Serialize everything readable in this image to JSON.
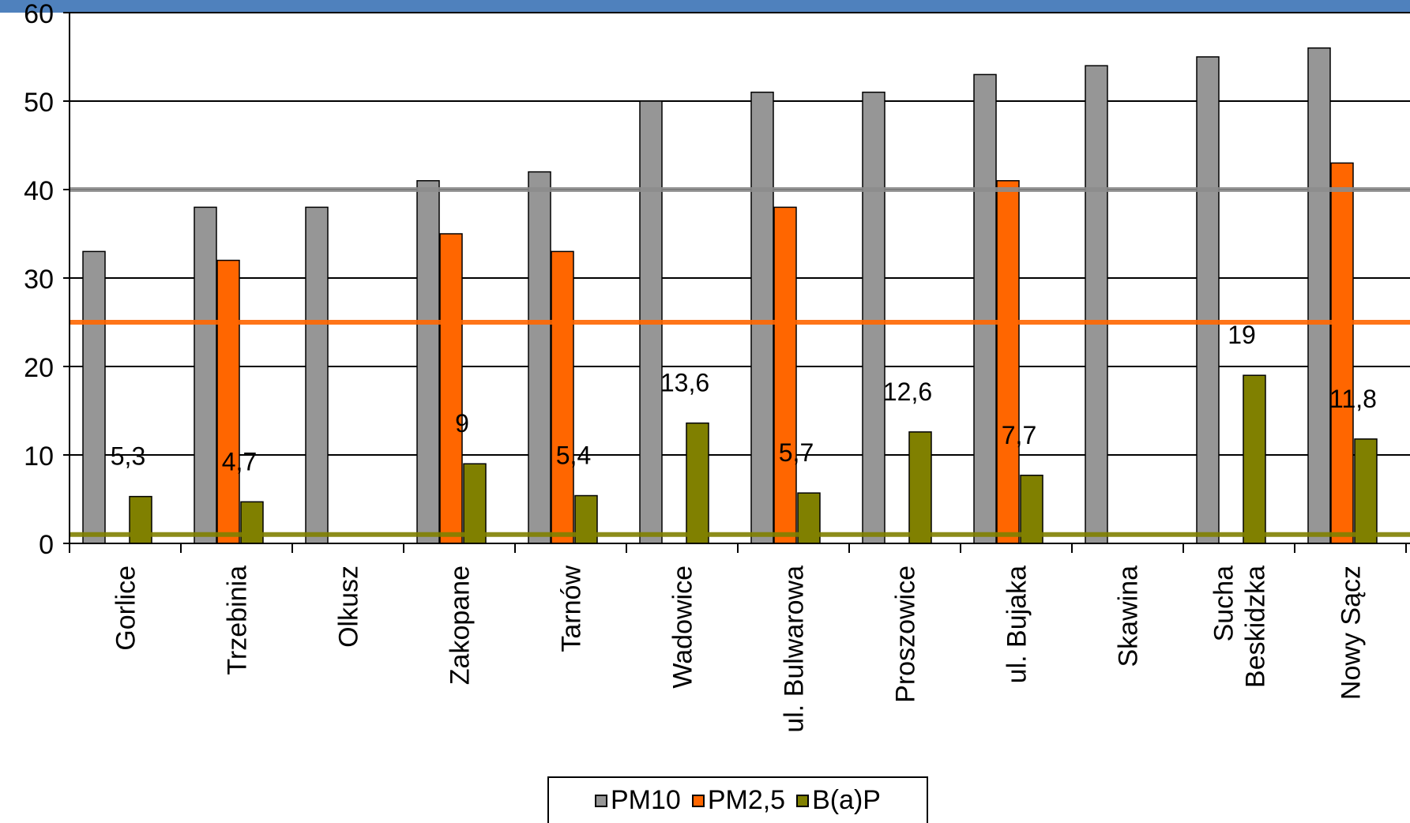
{
  "chart_data": {
    "type": "bar",
    "title": "",
    "xlabel": "",
    "ylabel": "",
    "ylim": [
      0,
      60
    ],
    "yticks": [
      0,
      10,
      20,
      30,
      40,
      50,
      60
    ],
    "grid": true,
    "legend_position": "bottom",
    "categories": [
      "Gorlice",
      "Trzebinia",
      "Olkusz",
      "Zakopane",
      "Tarnów",
      "Wadowice",
      "ul. Bulwarowa",
      "Proszowice",
      "ul. Bujaka",
      "Skawina",
      "Sucha Beskidzka",
      "Nowy Sącz"
    ],
    "series": [
      {
        "name": "PM10",
        "color": "#969696",
        "values": [
          33,
          38,
          38,
          41,
          42,
          50,
          51,
          51,
          53,
          54,
          55,
          56
        ]
      },
      {
        "name": "PM2,5",
        "color": "#ff6600",
        "values": [
          null,
          32,
          null,
          35,
          33,
          null,
          38,
          null,
          41,
          null,
          null,
          43
        ]
      },
      {
        "name": "B(a)P",
        "color": "#808000",
        "values": [
          5.3,
          4.7,
          null,
          9,
          5.4,
          13.6,
          5.7,
          12.6,
          7.7,
          null,
          19,
          11.8
        ]
      }
    ],
    "data_labels": {
      "series": "B(a)P",
      "labels": [
        "5,3",
        "4,7",
        "",
        "9",
        "5,4",
        "13,6",
        "5,7",
        "12,6",
        "7,7",
        "",
        "19",
        "11,8"
      ]
    },
    "reference_lines": [
      {
        "value": 40,
        "color": "#8c8c8c"
      },
      {
        "value": 25,
        "color": "#ff6600"
      },
      {
        "value": 1,
        "color": "#808000"
      }
    ]
  }
}
